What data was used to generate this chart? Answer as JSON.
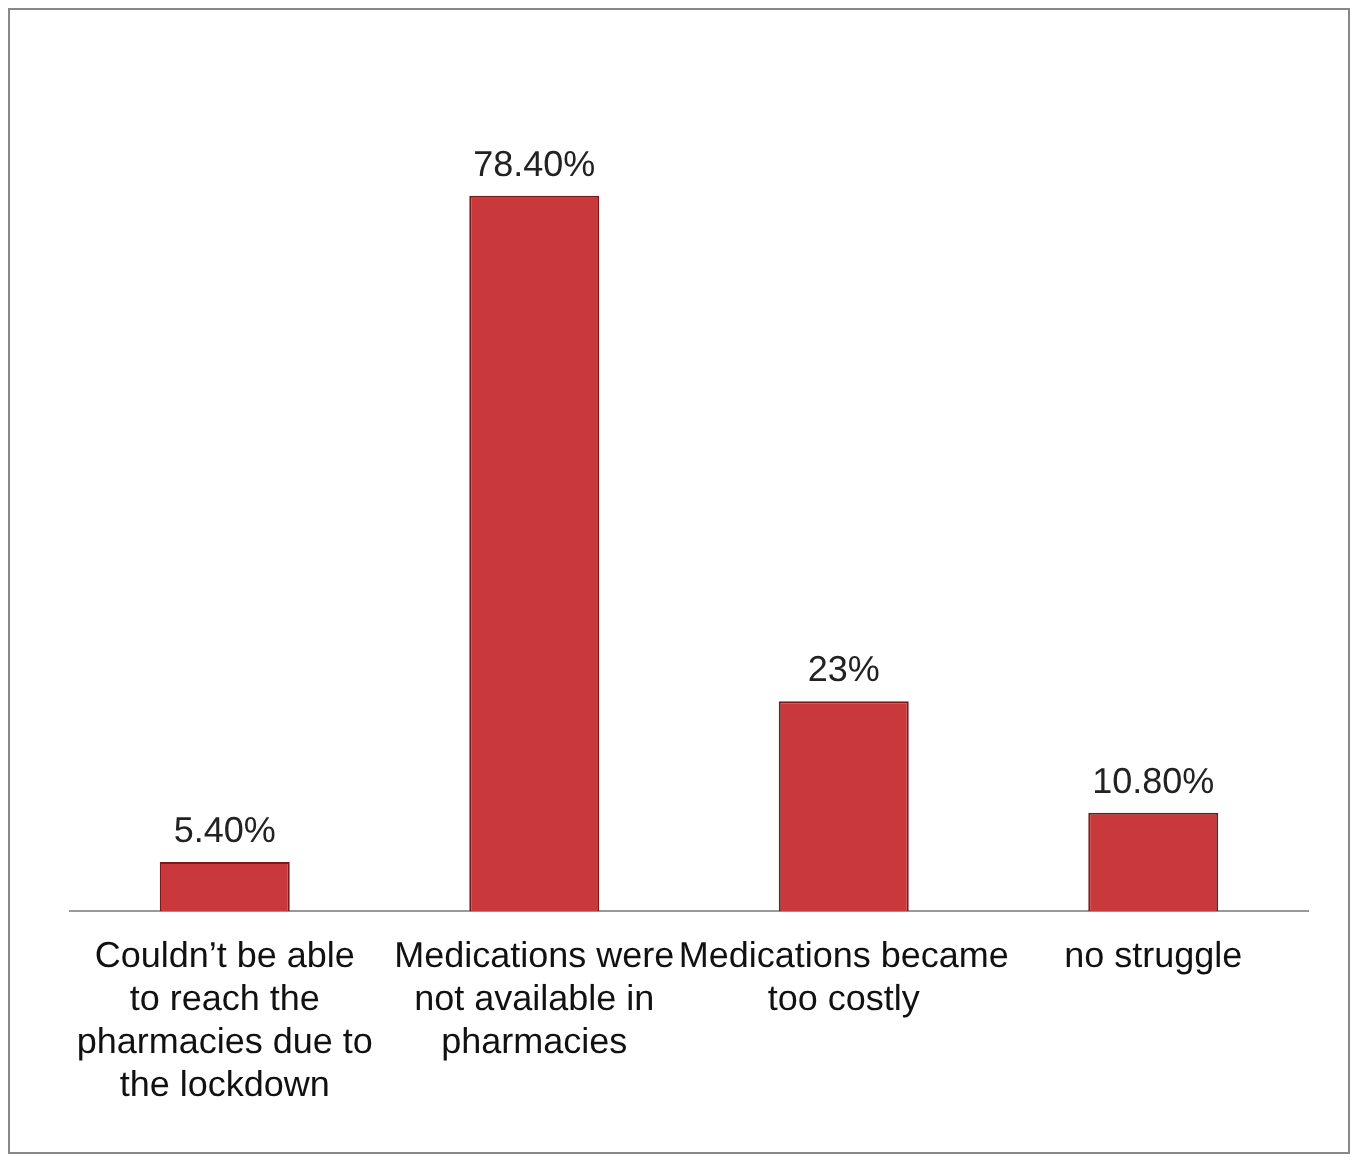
{
  "chart_data": {
    "type": "bar",
    "categories": [
      "Couldn’t be able to reach the pharmacies due to the lockdown",
      "Medications were not available in pharmacies",
      "Medications became too costly",
      "no struggle"
    ],
    "values": [
      5.4,
      78.4,
      23,
      10.8
    ],
    "value_labels": [
      "5.40%",
      "78.40%",
      "23%",
      "10.80%"
    ],
    "color": "#c9383a",
    "tick_labels": "x",
    "grid": false,
    "legend": false
  }
}
